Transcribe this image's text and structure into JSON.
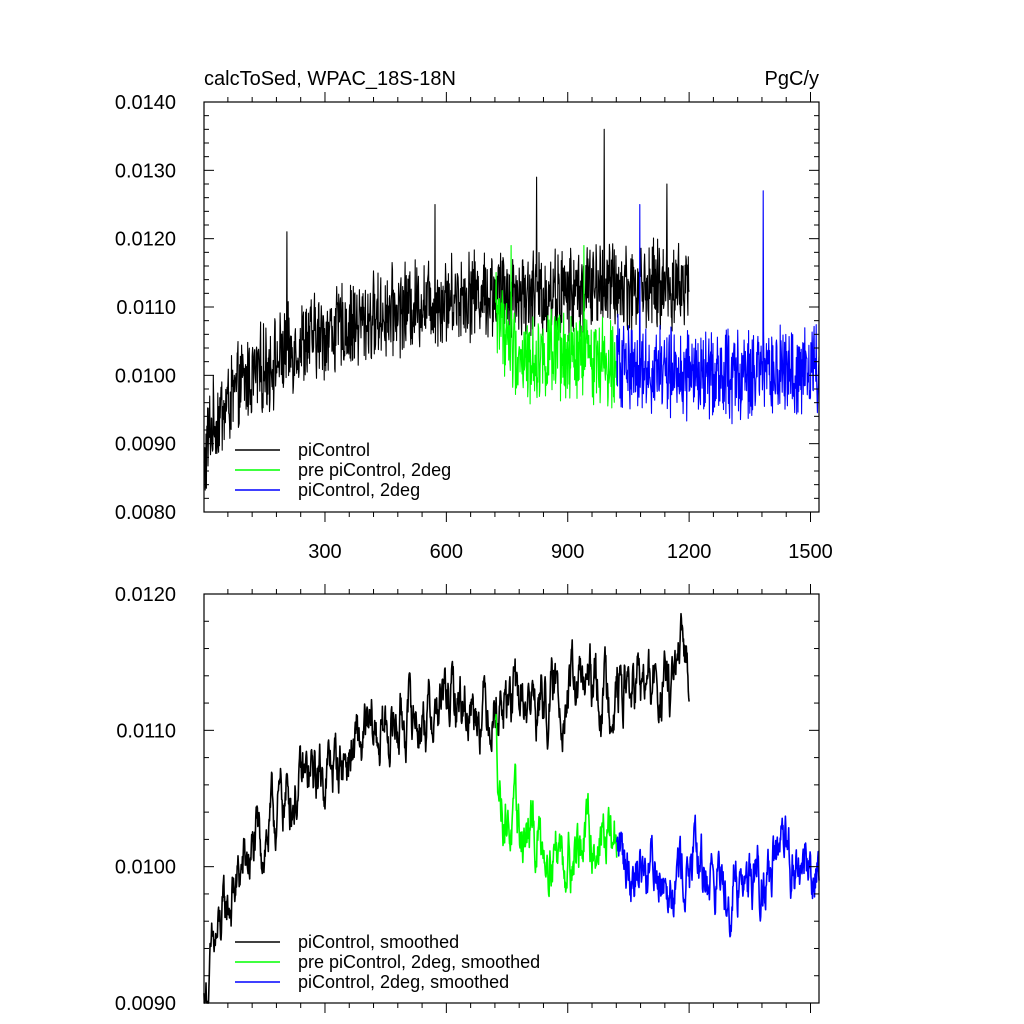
{
  "chart_data": [
    {
      "type": "line",
      "title": "calcToSed, WPAC_18S-18N",
      "units": "PgC/y",
      "xlim": [
        1,
        1521
      ],
      "ylim": [
        0.008,
        0.014
      ],
      "xticks": [
        300,
        600,
        900,
        1200,
        1500
      ],
      "xtick_labels": [
        "300",
        "600",
        "900",
        "1200",
        "1500"
      ],
      "yticks": [
        0.008,
        0.009,
        0.01,
        0.011,
        0.012,
        0.013,
        0.014
      ],
      "ytick_labels": [
        "0.0080",
        "0.0090",
        "0.0100",
        "0.0110",
        "0.0120",
        "0.0130",
        "0.0140"
      ],
      "legend_position": "bottom-left",
      "series": [
        {
          "name": "piControl",
          "color": "#000000",
          "x_range": [
            1,
            1200
          ],
          "anchors": [
            [
              1,
              0.0086
            ],
            [
              15,
              0.0092
            ],
            [
              50,
              0.0095
            ],
            [
              100,
              0.0099
            ],
            [
              150,
              0.0101
            ],
            [
              200,
              0.0103
            ],
            [
              250,
              0.0105
            ],
            [
              300,
              0.0106
            ],
            [
              350,
              0.0107
            ],
            [
              400,
              0.0108
            ],
            [
              450,
              0.0109
            ],
            [
              500,
              0.011
            ],
            [
              550,
              0.0111
            ],
            [
              600,
              0.0111
            ],
            [
              650,
              0.0112
            ],
            [
              700,
              0.0112
            ],
            [
              750,
              0.0112
            ],
            [
              800,
              0.0112
            ],
            [
              850,
              0.0112
            ],
            [
              900,
              0.0112
            ],
            [
              950,
              0.0113
            ],
            [
              1000,
              0.0113
            ],
            [
              1050,
              0.0113
            ],
            [
              1100,
              0.0113
            ],
            [
              1150,
              0.0113
            ],
            [
              1200,
              0.0113
            ]
          ],
          "noise": 0.00055,
          "spikes": [
            [
              206,
              0.0121
            ],
            [
              572,
              0.0125
            ],
            [
              823,
              0.0129
            ],
            [
              990,
              0.0136
            ],
            [
              1145,
              0.0128
            ]
          ]
        },
        {
          "name": "pre piControl, 2deg",
          "color": "#00ff00",
          "x_range": [
            722,
            1021
          ],
          "anchors": [
            [
              722,
              0.011
            ],
            [
              760,
              0.0104
            ],
            [
              800,
              0.0102
            ],
            [
              850,
              0.0103
            ],
            [
              900,
              0.0102
            ],
            [
              950,
              0.0103
            ],
            [
              1000,
              0.0102
            ],
            [
              1021,
              0.0103
            ]
          ],
          "noise": 0.00055,
          "spikes": [
            [
              760,
              0.0119
            ],
            [
              940,
              0.0119
            ]
          ]
        },
        {
          "name": "piControl, 2deg",
          "color": "#0000ff",
          "x_range": [
            1021,
            1521
          ],
          "anchors": [
            [
              1021,
              0.0102
            ],
            [
              1100,
              0.0101
            ],
            [
              1200,
              0.01
            ],
            [
              1300,
              0.01
            ],
            [
              1400,
              0.01
            ],
            [
              1521,
              0.0101
            ]
          ],
          "noise": 0.00055,
          "spikes": [
            [
              1078,
              0.0125
            ],
            [
              1383,
              0.0127
            ]
          ]
        }
      ]
    },
    {
      "type": "line",
      "title": "",
      "xlim": [
        1,
        1521
      ],
      "ylim": [
        0.009,
        0.012
      ],
      "xticks": [
        300,
        600,
        900,
        1200,
        1500
      ],
      "xtick_labels": [
        "",
        "",
        "",
        "",
        ""
      ],
      "yticks": [
        0.009,
        0.01,
        0.011,
        0.012
      ],
      "ytick_labels": [
        "0.0090",
        "0.0100",
        "0.0110",
        "0.0120"
      ],
      "legend_position": "bottom-left",
      "series": [
        {
          "name": "piControl, smoothed",
          "color": "#000000",
          "x_range": [
            1,
            1200
          ],
          "anchors": [
            [
              1,
              0.009
            ],
            [
              15,
              0.0092
            ],
            [
              30,
              0.0094
            ],
            [
              60,
              0.0097
            ],
            [
              100,
              0.01
            ],
            [
              150,
              0.0102
            ],
            [
              200,
              0.0105
            ],
            [
              250,
              0.0106
            ],
            [
              300,
              0.0107
            ],
            [
              350,
              0.0108
            ],
            [
              400,
              0.0109
            ],
            [
              450,
              0.011
            ],
            [
              500,
              0.0111
            ],
            [
              550,
              0.0111
            ],
            [
              600,
              0.0112
            ],
            [
              650,
              0.0112
            ],
            [
              700,
              0.0112
            ],
            [
              750,
              0.0112
            ],
            [
              800,
              0.0112
            ],
            [
              850,
              0.0112
            ],
            [
              900,
              0.0113
            ],
            [
              950,
              0.0113
            ],
            [
              1000,
              0.0113
            ],
            [
              1050,
              0.0113
            ],
            [
              1100,
              0.0113
            ],
            [
              1150,
              0.0113
            ],
            [
              1190,
              0.0115
            ]
          ],
          "noise": 0.00025
        },
        {
          "name": "pre piControl, 2deg, smoothed",
          "color": "#00ff00",
          "x_range": [
            722,
            1021
          ],
          "anchors": [
            [
              722,
              0.011
            ],
            [
              735,
              0.0105
            ],
            [
              760,
              0.0103
            ],
            [
              800,
              0.0102
            ],
            [
              850,
              0.0102
            ],
            [
              900,
              0.0101
            ],
            [
              950,
              0.0102
            ],
            [
              1000,
              0.0102
            ],
            [
              1021,
              0.0102
            ]
          ],
          "noise": 0.00025
        },
        {
          "name": "piControl, 2deg, smoothed",
          "color": "#0000ff",
          "x_range": [
            1021,
            1521
          ],
          "anchors": [
            [
              1021,
              0.0101
            ],
            [
              1100,
              0.01
            ],
            [
              1200,
              0.01
            ],
            [
              1300,
              0.0099
            ],
            [
              1400,
              0.01
            ],
            [
              1521,
              0.01
            ]
          ],
          "noise": 0.00025
        }
      ]
    }
  ]
}
